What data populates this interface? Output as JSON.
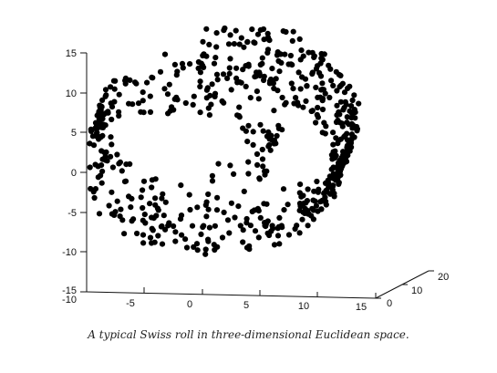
{
  "caption": "A typical Swiss roll in three-dimensional Euclidean space.",
  "chart_data": {
    "type": "scatter",
    "title": "",
    "xlabel": "",
    "ylabel": "",
    "zlabel": "",
    "projection": "3d",
    "xlim": [
      -10,
      15
    ],
    "ylim": [
      0,
      20
    ],
    "zlim": [
      -15,
      15
    ],
    "x_ticks": [
      "-10",
      "-5",
      "0",
      "5",
      "10",
      "15"
    ],
    "y_ticks": [
      "0",
      "10",
      "20"
    ],
    "z_ticks": [
      "15",
      "10",
      "5",
      "0",
      "-5",
      "-10",
      "-15"
    ],
    "grid": false,
    "marker_color": "#000000",
    "t_range": [
      4.71,
      14.14
    ],
    "depth_range": [
      0,
      20
    ],
    "n_points": 700
  }
}
